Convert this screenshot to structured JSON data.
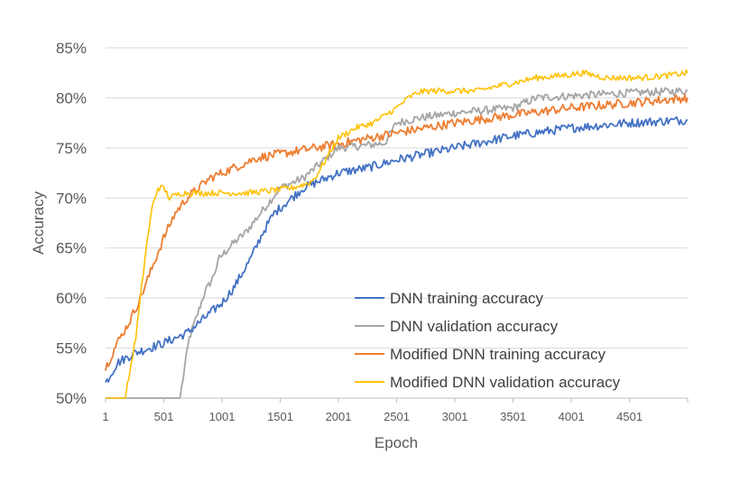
{
  "chart_data": {
    "type": "line",
    "title": "",
    "xlabel": "Epoch",
    "ylabel": "Accuracy",
    "xlim": [
      1,
      5000
    ],
    "ylim": [
      0.5,
      0.85
    ],
    "x_ticks": [
      1,
      501,
      1001,
      1501,
      2001,
      2501,
      3001,
      3501,
      4001,
      4501
    ],
    "y_ticks": [
      0.5,
      0.55,
      0.6,
      0.65,
      0.7,
      0.75,
      0.8,
      0.85
    ],
    "y_tick_labels": [
      "50%",
      "55%",
      "60%",
      "65%",
      "70%",
      "75%",
      "80%",
      "85%"
    ],
    "legend_position": "bottom-right",
    "series": [
      {
        "name": "DNN training accuracy",
        "color": "#4472C4",
        "points": [
          [
            1,
            0.515
          ],
          [
            100,
            0.535
          ],
          [
            250,
            0.545
          ],
          [
            500,
            0.555
          ],
          [
            700,
            0.565
          ],
          [
            850,
            0.58
          ],
          [
            1000,
            0.595
          ],
          [
            1100,
            0.61
          ],
          [
            1250,
            0.64
          ],
          [
            1350,
            0.665
          ],
          [
            1450,
            0.685
          ],
          [
            1550,
            0.695
          ],
          [
            1700,
            0.71
          ],
          [
            1900,
            0.72
          ],
          [
            2000,
            0.725
          ],
          [
            2250,
            0.73
          ],
          [
            2500,
            0.738
          ],
          [
            3000,
            0.75
          ],
          [
            3500,
            0.762
          ],
          [
            4000,
            0.77
          ],
          [
            4500,
            0.775
          ],
          [
            5000,
            0.778
          ]
        ]
      },
      {
        "name": "DNN validation accuracy",
        "color": "#A5A5A5",
        "points": [
          [
            1,
            0.5
          ],
          [
            640,
            0.5
          ],
          [
            680,
            0.53
          ],
          [
            720,
            0.56
          ],
          [
            780,
            0.58
          ],
          [
            850,
            0.605
          ],
          [
            920,
            0.62
          ],
          [
            980,
            0.64
          ],
          [
            1020,
            0.645
          ],
          [
            1100,
            0.655
          ],
          [
            1200,
            0.665
          ],
          [
            1300,
            0.68
          ],
          [
            1400,
            0.695
          ],
          [
            1500,
            0.71
          ],
          [
            1600,
            0.715
          ],
          [
            1700,
            0.72
          ],
          [
            1800,
            0.73
          ],
          [
            1900,
            0.74
          ],
          [
            2000,
            0.75
          ],
          [
            2200,
            0.752
          ],
          [
            2400,
            0.755
          ],
          [
            2500,
            0.775
          ],
          [
            2700,
            0.78
          ],
          [
            3000,
            0.785
          ],
          [
            3500,
            0.79
          ],
          [
            3700,
            0.8
          ],
          [
            4000,
            0.802
          ],
          [
            4500,
            0.805
          ],
          [
            5000,
            0.807
          ]
        ]
      },
      {
        "name": "Modified DNN training accuracy",
        "color": "#ED7D31",
        "points": [
          [
            1,
            0.53
          ],
          [
            100,
            0.555
          ],
          [
            200,
            0.575
          ],
          [
            300,
            0.6
          ],
          [
            400,
            0.63
          ],
          [
            500,
            0.66
          ],
          [
            600,
            0.685
          ],
          [
            700,
            0.7
          ],
          [
            800,
            0.71
          ],
          [
            900,
            0.72
          ],
          [
            1000,
            0.725
          ],
          [
            1100,
            0.73
          ],
          [
            1200,
            0.735
          ],
          [
            1300,
            0.74
          ],
          [
            1500,
            0.744
          ],
          [
            1700,
            0.748
          ],
          [
            2000,
            0.754
          ],
          [
            2500,
            0.765
          ],
          [
            3000,
            0.775
          ],
          [
            3500,
            0.783
          ],
          [
            4000,
            0.79
          ],
          [
            4500,
            0.795
          ],
          [
            5000,
            0.8
          ]
        ]
      },
      {
        "name": "Modified DNN validation accuracy",
        "color": "#FFC000",
        "points": [
          [
            1,
            0.5
          ],
          [
            170,
            0.5
          ],
          [
            200,
            0.52
          ],
          [
            260,
            0.56
          ],
          [
            300,
            0.6
          ],
          [
            350,
            0.65
          ],
          [
            400,
            0.69
          ],
          [
            450,
            0.71
          ],
          [
            500,
            0.71
          ],
          [
            550,
            0.7
          ],
          [
            650,
            0.705
          ],
          [
            800,
            0.705
          ],
          [
            1000,
            0.705
          ],
          [
            1200,
            0.705
          ],
          [
            1400,
            0.707
          ],
          [
            1600,
            0.71
          ],
          [
            1750,
            0.715
          ],
          [
            1800,
            0.72
          ],
          [
            1900,
            0.74
          ],
          [
            2000,
            0.76
          ],
          [
            2150,
            0.77
          ],
          [
            2300,
            0.775
          ],
          [
            2500,
            0.79
          ],
          [
            2600,
            0.8
          ],
          [
            2700,
            0.806
          ],
          [
            2800,
            0.807
          ],
          [
            3200,
            0.807
          ],
          [
            3300,
            0.81
          ],
          [
            3500,
            0.815
          ],
          [
            3700,
            0.82
          ],
          [
            3900,
            0.822
          ],
          [
            4100,
            0.825
          ],
          [
            4300,
            0.82
          ],
          [
            4600,
            0.82
          ],
          [
            4800,
            0.822
          ],
          [
            5000,
            0.825
          ]
        ]
      }
    ]
  }
}
